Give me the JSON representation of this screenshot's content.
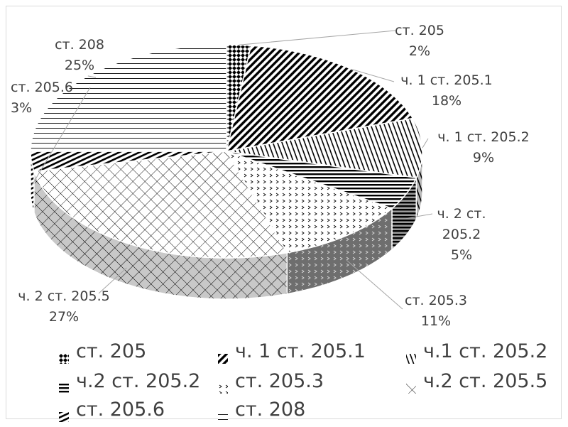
{
  "chart_data": {
    "type": "pie",
    "title": "",
    "style": "3d-pie",
    "categories": [
      "ст. 205",
      "ч. 1 ст. 205.1",
      "ч. 1 ст. 205.2",
      "ч. 2 ст. 205.2",
      "ст. 205.3",
      "ч. 2 ст. 205.5",
      "ст. 205.6",
      "ст. 208"
    ],
    "values": [
      2,
      18,
      9,
      5,
      11,
      27,
      3,
      25
    ],
    "unit": "%",
    "data_labels": [
      {
        "name": "ст. 205",
        "value": "2%"
      },
      {
        "name": "ч. 1 ст. 205.1",
        "value": "18%"
      },
      {
        "name": "ч. 1 ст. 205.2",
        "value": "9%"
      },
      {
        "name": "ч. 2 ст.",
        "name2": "205.2",
        "value": "5%"
      },
      {
        "name": "ст. 205.3",
        "value": "11%"
      },
      {
        "name": "ч. 2 ст. 205.5",
        "value": "27%"
      },
      {
        "name": "ст. 205.6",
        "value": "3%"
      },
      {
        "name": "ст. 208",
        "value": "25%"
      }
    ],
    "legend": {
      "placement": "bottom",
      "entries": [
        "ст. 205",
        "ч. 1 ст. 205.1",
        "ч.1 ст. 205.2",
        "ч.2 ст. 205.2",
        "ст. 205.3",
        "ч.2 ст. 205.5",
        "ст. 205.6",
        "ст. 208"
      ]
    },
    "colors": {
      "text": "#404040",
      "border": "#d9d9d9",
      "ink": "#000000",
      "side_dark": "#6e6e6e"
    }
  }
}
